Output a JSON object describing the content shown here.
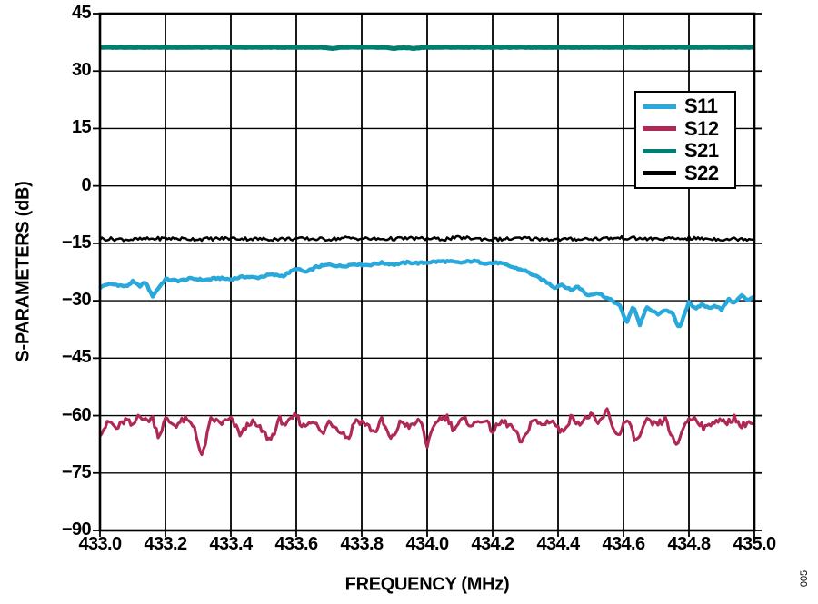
{
  "figure": {
    "fig_note": "005",
    "background": "#ffffff"
  },
  "chart_data": {
    "type": "line",
    "title": "",
    "xlabel": "FREQUENCY (MHz)",
    "ylabel": "S-PARAMETERS (dB)",
    "xlim": [
      433.0,
      435.0
    ],
    "ylim": [
      -90,
      45
    ],
    "grid": true,
    "legend_position": "upper-right",
    "x_ticks": [
      433.0,
      433.2,
      433.4,
      433.6,
      433.8,
      434.0,
      434.2,
      434.4,
      434.6,
      434.8,
      435.0
    ],
    "x_tick_labels": [
      "433.0",
      "433.2",
      "433.4",
      "433.6",
      "433.8",
      "434.0",
      "434.2",
      "434.4",
      "434.6",
      "434.8",
      "435.0"
    ],
    "y_ticks": [
      45,
      30,
      15,
      0,
      -15,
      -30,
      -45,
      -60,
      -75,
      -90
    ],
    "y_tick_labels": [
      "45",
      "30",
      "15",
      "0",
      "−15",
      "−30",
      "−45",
      "−60",
      "−75",
      "−90"
    ],
    "series": [
      {
        "name": "S11",
        "color": "#29A8DC",
        "width": 4.4,
        "noise_db": 0.25,
        "points": [
          [
            433.0,
            -26.6
          ],
          [
            433.02,
            -25.7
          ],
          [
            433.05,
            -25.8
          ],
          [
            433.08,
            -26.3
          ],
          [
            433.1,
            -25.0
          ],
          [
            433.12,
            -26.2
          ],
          [
            433.14,
            -25.2
          ],
          [
            433.16,
            -28.9
          ],
          [
            433.18,
            -26.5
          ],
          [
            433.2,
            -24.4
          ],
          [
            433.24,
            -24.8
          ],
          [
            433.28,
            -24.2
          ],
          [
            433.32,
            -24.6
          ],
          [
            433.36,
            -24.1
          ],
          [
            433.4,
            -24.4
          ],
          [
            433.44,
            -23.7
          ],
          [
            433.48,
            -24.0
          ],
          [
            433.52,
            -23.2
          ],
          [
            433.56,
            -23.5
          ],
          [
            433.6,
            -21.6
          ],
          [
            433.63,
            -22.6
          ],
          [
            433.66,
            -21.2
          ],
          [
            433.7,
            -20.6
          ],
          [
            433.74,
            -21.0
          ],
          [
            433.78,
            -20.4
          ],
          [
            433.82,
            -20.7
          ],
          [
            433.86,
            -20.1
          ],
          [
            433.9,
            -20.5
          ],
          [
            433.94,
            -20.0
          ],
          [
            433.98,
            -20.2
          ],
          [
            434.02,
            -19.8
          ],
          [
            434.06,
            -19.7
          ],
          [
            434.1,
            -20.1
          ],
          [
            434.14,
            -19.6
          ],
          [
            434.18,
            -20.2
          ],
          [
            434.22,
            -20.1
          ],
          [
            434.26,
            -21.2
          ],
          [
            434.3,
            -22.2
          ],
          [
            434.34,
            -24.0
          ],
          [
            434.37,
            -25.4
          ],
          [
            434.39,
            -26.6
          ],
          [
            434.41,
            -25.7
          ],
          [
            434.44,
            -27.3
          ],
          [
            434.46,
            -26.2
          ],
          [
            434.49,
            -28.6
          ],
          [
            434.52,
            -27.9
          ],
          [
            434.55,
            -29.3
          ],
          [
            434.57,
            -30.2
          ],
          [
            434.59,
            -31.5
          ],
          [
            434.61,
            -35.9
          ],
          [
            434.63,
            -31.2
          ],
          [
            434.65,
            -36.3
          ],
          [
            434.67,
            -31.8
          ],
          [
            434.69,
            -32.8
          ],
          [
            434.71,
            -33.6
          ],
          [
            434.73,
            -32.2
          ],
          [
            434.75,
            -33.4
          ],
          [
            434.77,
            -37.4
          ],
          [
            434.8,
            -30.2
          ],
          [
            434.82,
            -32.3
          ],
          [
            434.84,
            -30.9
          ],
          [
            434.86,
            -31.9
          ],
          [
            434.88,
            -31.2
          ],
          [
            434.9,
            -32.4
          ],
          [
            434.92,
            -29.6
          ],
          [
            434.94,
            -30.6
          ],
          [
            434.96,
            -28.6
          ],
          [
            434.98,
            -29.8
          ],
          [
            435.0,
            -28.8
          ]
        ]
      },
      {
        "name": "S12",
        "color": "#AE2A55",
        "width": 3.2,
        "noise_db": 0.9,
        "points": [
          [
            433.0,
            -64.5
          ],
          [
            433.03,
            -61.5
          ],
          [
            433.05,
            -63.5
          ],
          [
            433.08,
            -61.0
          ],
          [
            433.1,
            -63.0
          ],
          [
            433.12,
            -59.3
          ],
          [
            433.14,
            -61.5
          ],
          [
            433.16,
            -60.5
          ],
          [
            433.18,
            -65.5
          ],
          [
            433.2,
            -61.0
          ],
          [
            433.23,
            -62.5
          ],
          [
            433.26,
            -61.0
          ],
          [
            433.29,
            -63.0
          ],
          [
            433.31,
            -71.3
          ],
          [
            433.34,
            -60.8
          ],
          [
            433.37,
            -62.0
          ],
          [
            433.4,
            -61.0
          ],
          [
            433.43,
            -65.0
          ],
          [
            433.46,
            -61.5
          ],
          [
            433.49,
            -63.5
          ],
          [
            433.52,
            -66.5
          ],
          [
            433.55,
            -61.0
          ],
          [
            433.57,
            -62.5
          ],
          [
            433.6,
            -59.8
          ],
          [
            433.62,
            -63.0
          ],
          [
            433.65,
            -61.0
          ],
          [
            433.68,
            -65.0
          ],
          [
            433.7,
            -61.5
          ],
          [
            433.73,
            -63.5
          ],
          [
            433.76,
            -66.0
          ],
          [
            433.78,
            -61.0
          ],
          [
            433.81,
            -62.0
          ],
          [
            433.84,
            -64.5
          ],
          [
            433.86,
            -61.0
          ],
          [
            433.89,
            -66.5
          ],
          [
            433.92,
            -61.5
          ],
          [
            433.95,
            -63.0
          ],
          [
            433.98,
            -61.0
          ],
          [
            434.0,
            -68.0
          ],
          [
            434.03,
            -61.0
          ],
          [
            434.06,
            -60.3
          ],
          [
            434.08,
            -63.5
          ],
          [
            434.11,
            -61.0
          ],
          [
            434.14,
            -62.5
          ],
          [
            434.17,
            -60.8
          ],
          [
            434.2,
            -64.0
          ],
          [
            434.23,
            -61.5
          ],
          [
            434.26,
            -63.0
          ],
          [
            434.29,
            -67.5
          ],
          [
            434.32,
            -61.0
          ],
          [
            434.35,
            -62.5
          ],
          [
            434.38,
            -61.0
          ],
          [
            434.41,
            -64.5
          ],
          [
            434.44,
            -60.5
          ],
          [
            434.47,
            -62.0
          ],
          [
            434.5,
            -59.6
          ],
          [
            434.52,
            -62.5
          ],
          [
            434.55,
            -58.8
          ],
          [
            434.58,
            -65.5
          ],
          [
            434.61,
            -61.0
          ],
          [
            434.64,
            -67.0
          ],
          [
            434.67,
            -61.5
          ],
          [
            434.7,
            -62.5
          ],
          [
            434.73,
            -61.0
          ],
          [
            434.76,
            -68.5
          ],
          [
            434.79,
            -61.5
          ],
          [
            434.82,
            -60.5
          ],
          [
            434.85,
            -63.5
          ],
          [
            434.88,
            -61.0
          ],
          [
            434.91,
            -62.0
          ],
          [
            434.94,
            -60.5
          ],
          [
            434.96,
            -63.0
          ],
          [
            434.98,
            -61.5
          ],
          [
            435.0,
            -62.5
          ]
        ]
      },
      {
        "name": "S21",
        "color": "#007E72",
        "width": 5.2,
        "noise_db": 0.06,
        "points": [
          [
            433.0,
            36.2
          ],
          [
            433.68,
            36.2
          ],
          [
            433.71,
            35.85
          ],
          [
            433.74,
            36.2
          ],
          [
            433.87,
            36.2
          ],
          [
            433.9,
            35.9
          ],
          [
            433.93,
            36.15
          ],
          [
            433.96,
            35.9
          ],
          [
            433.99,
            36.2
          ],
          [
            435.0,
            36.2
          ]
        ]
      },
      {
        "name": "S22",
        "color": "#000000",
        "width": 2.5,
        "noise_db": 0.45,
        "points": [
          [
            433.0,
            -13.8
          ],
          [
            433.1,
            -14.0
          ],
          [
            433.2,
            -13.7
          ],
          [
            433.3,
            -13.9
          ],
          [
            433.4,
            -13.7
          ],
          [
            433.5,
            -13.9
          ],
          [
            433.6,
            -13.8
          ],
          [
            433.7,
            -13.9
          ],
          [
            433.75,
            -13.6
          ],
          [
            433.85,
            -13.9
          ],
          [
            433.95,
            -13.7
          ],
          [
            434.05,
            -13.9
          ],
          [
            434.1,
            -13.5
          ],
          [
            434.2,
            -14.0
          ],
          [
            434.3,
            -13.7
          ],
          [
            434.4,
            -14.0
          ],
          [
            434.5,
            -13.8
          ],
          [
            434.6,
            -13.6
          ],
          [
            434.7,
            -13.9
          ],
          [
            434.8,
            -13.7
          ],
          [
            434.9,
            -13.9
          ],
          [
            435.0,
            -13.8
          ]
        ]
      }
    ]
  }
}
